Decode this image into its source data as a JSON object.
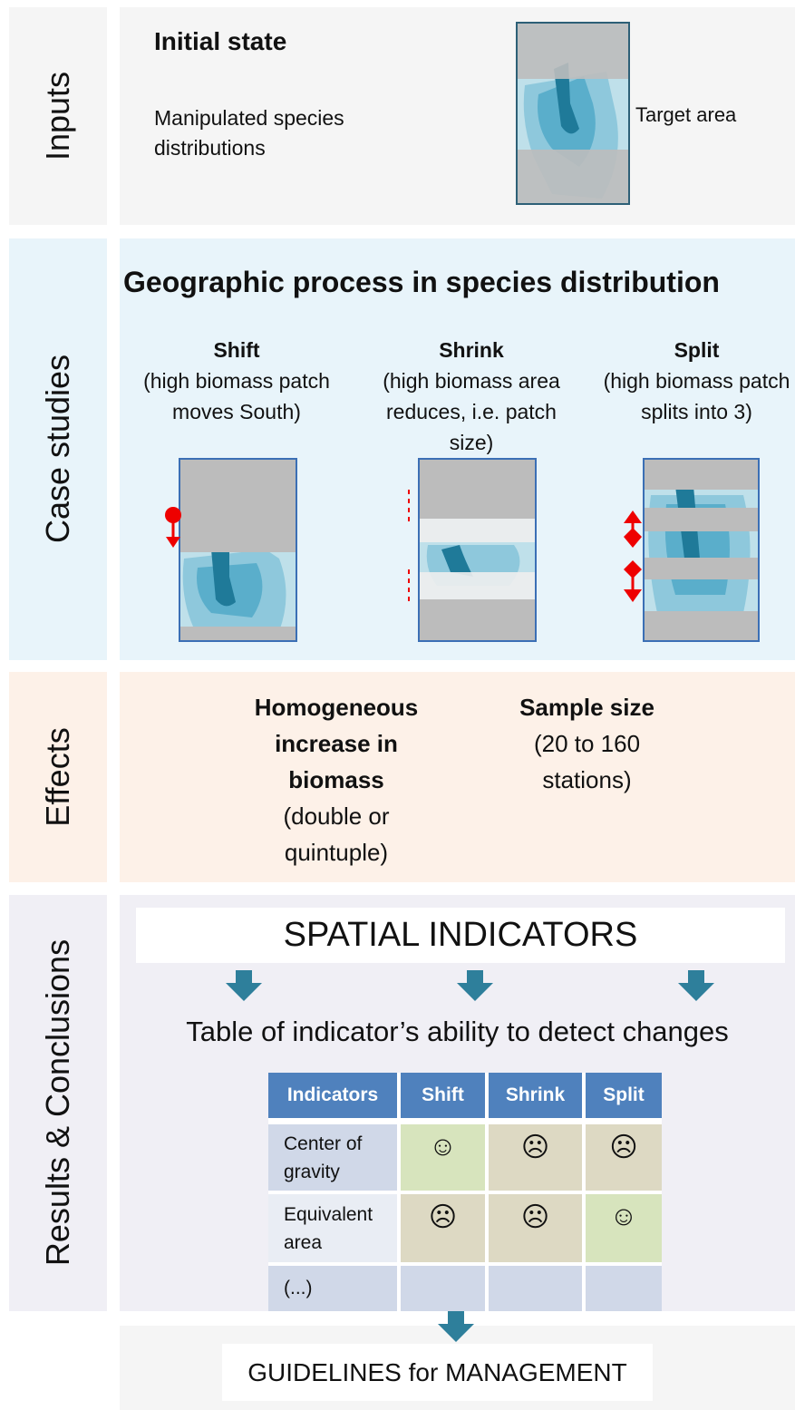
{
  "inputs": {
    "label": "Inputs",
    "title": "Initial state",
    "text": "Manipulated species distributions",
    "map_label": "Target area"
  },
  "case_studies": {
    "label": "Case studies",
    "title": "Geographic process in species distribution",
    "cases": [
      {
        "name": "Shift",
        "description": "(high biomass patch moves South)"
      },
      {
        "name": "Shrink",
        "description": "(high biomass area reduces, i.e. patch size)"
      },
      {
        "name": "Split",
        "description": "(high biomass patch splits into 3)"
      }
    ]
  },
  "effects": {
    "label": "Effects",
    "items": [
      {
        "title": "Homogeneous increase in biomass",
        "description": "(double or quintuple)"
      },
      {
        "title": "Sample size",
        "description": "(20 to 160 stations)"
      }
    ]
  },
  "results": {
    "label": "Results & Conclusions",
    "indicators_title": "SPATIAL INDICATORS",
    "table_title": "Table of indicator’s ability to detect changes",
    "table": {
      "header": [
        "Indicators",
        "Shift",
        "Shrink",
        "Split"
      ],
      "rows": [
        [
          "Center of gravity",
          "☺",
          "☹",
          "☹"
        ],
        [
          "Equivalent area",
          "☹",
          "☹",
          "☺"
        ],
        [
          "(...)"
        ]
      ]
    }
  },
  "guidelines": "GUIDELINES for MANAGEMENT"
}
